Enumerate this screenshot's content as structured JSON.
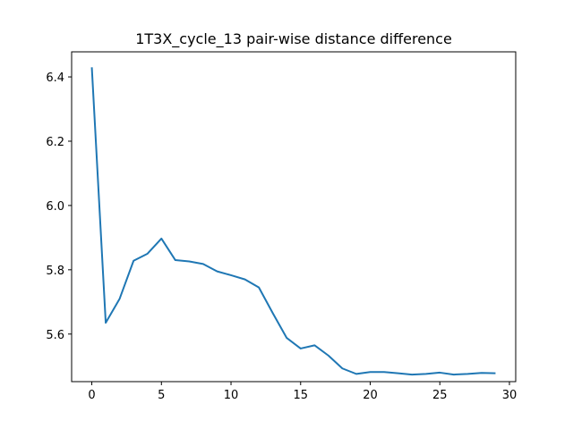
{
  "chart_data": {
    "type": "line",
    "title": "1T3X_cycle_13 pair-wise distance difference",
    "xlabel": "",
    "ylabel": "",
    "xlim": [
      -1.45,
      30.45
    ],
    "ylim": [
      5.452,
      6.478
    ],
    "xticks": [
      0,
      5,
      10,
      15,
      20,
      25,
      30
    ],
    "yticks": [
      5.6,
      5.8,
      6.0,
      6.2,
      6.4
    ],
    "xtick_labels": [
      "0",
      "5",
      "10",
      "15",
      "20",
      "25",
      "30"
    ],
    "ytick_labels": [
      "5.6",
      "5.8",
      "6.0",
      "6.2",
      "6.4"
    ],
    "grid": false,
    "series": [
      {
        "color": "#1f77b4",
        "x": [
          0,
          1,
          2,
          3,
          4,
          5,
          6,
          7,
          8,
          9,
          10,
          11,
          12,
          13,
          14,
          15,
          16,
          17,
          18,
          19,
          20,
          21,
          22,
          23,
          24,
          25,
          26,
          27,
          28,
          29
        ],
        "values": [
          6.43,
          5.635,
          5.71,
          5.828,
          5.85,
          5.897,
          5.83,
          5.826,
          5.818,
          5.795,
          5.783,
          5.77,
          5.745,
          5.665,
          5.588,
          5.555,
          5.565,
          5.533,
          5.493,
          5.476,
          5.482,
          5.482,
          5.478,
          5.474,
          5.476,
          5.48,
          5.474,
          5.476,
          5.479,
          5.478
        ]
      }
    ]
  }
}
